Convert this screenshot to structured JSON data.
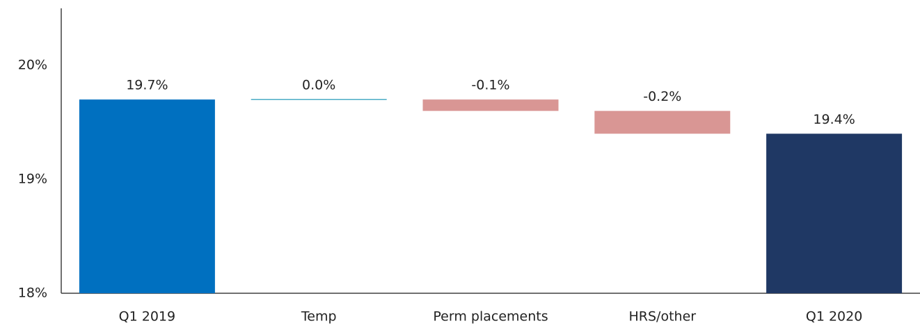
{
  "chart_data": {
    "type": "waterfall",
    "categories": [
      "Q1 2019",
      "Temp",
      "Perm placements",
      "HRS/other",
      "Q1 2020"
    ],
    "values": [
      19.7,
      0.0,
      -0.1,
      -0.2,
      19.4
    ],
    "value_labels": [
      "19.7%",
      "0.0%",
      "-0.1%",
      "-0.2%",
      "19.4%"
    ],
    "measures": [
      "total",
      "relative",
      "relative",
      "relative",
      "total"
    ],
    "colors": [
      "#0070c0",
      "#4bacc6",
      "#d99694",
      "#d99694",
      "#1f3864"
    ],
    "ylim": [
      18,
      20.5
    ],
    "yticks": [
      {
        "value": 18,
        "label": "18%"
      },
      {
        "value": 19,
        "label": "19%"
      },
      {
        "value": 20,
        "label": "20%"
      }
    ],
    "grid": false
  }
}
